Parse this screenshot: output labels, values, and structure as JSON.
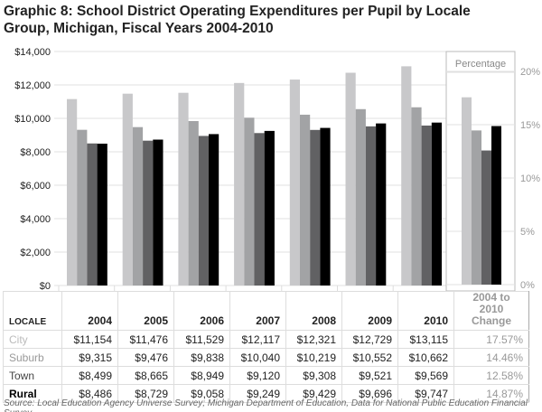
{
  "title": "Graphic 8: School District Operating Expenditures per Pupil by Locale Group, Michigan, Fiscal Years 2004-2010",
  "source": "Source: Local Education Agency Universe Survey; Michigan Department of Education, Data for National Public Education Financial Survey",
  "chart_data": [
    {
      "type": "bar",
      "categories": [
        "2004",
        "2005",
        "2006",
        "2007",
        "2008",
        "2009",
        "2010"
      ],
      "ylim": [
        0,
        14000
      ],
      "yticks": [
        "$0",
        "$2,000",
        "$4,000",
        "$6,000",
        "$8,000",
        "$10,000",
        "$12,000",
        "$14,000"
      ],
      "grid": true,
      "series": [
        {
          "name": "City",
          "color": "#c8c8ca",
          "values": [
            11154,
            11476,
            11529,
            12117,
            12321,
            12729,
            13115
          ]
        },
        {
          "name": "Suburb",
          "color": "#a2a3a5",
          "values": [
            9315,
            9476,
            9838,
            10040,
            10219,
            10552,
            10662
          ]
        },
        {
          "name": "Town",
          "color": "#616163",
          "values": [
            8499,
            8665,
            8949,
            9120,
            9308,
            9521,
            9569
          ]
        },
        {
          "name": "Rural",
          "color": "#000000",
          "values": [
            8486,
            8729,
            9058,
            9249,
            9429,
            9696,
            9747
          ]
        }
      ]
    },
    {
      "type": "bar",
      "title": "Percentage",
      "ylim": [
        0,
        20
      ],
      "yticks": [
        "0%",
        "5%",
        "10%",
        "15%",
        "20%"
      ],
      "categories": [
        "City",
        "Suburb",
        "Town",
        "Rural"
      ],
      "values": [
        17.57,
        14.46,
        12.58,
        14.87
      ]
    }
  ],
  "table": {
    "locale_header": "LOCALE",
    "change_header_1": "2004 to 2010",
    "change_header_2": "Change",
    "rows": [
      {
        "label": "City",
        "values": [
          "$11,154",
          "$11,476",
          "$11,529",
          "$12,117",
          "$12,321",
          "$12,729",
          "$13,115"
        ],
        "change": "17.57%"
      },
      {
        "label": "Suburb",
        "values": [
          "$9,315",
          "$9,476",
          "$9,838",
          "$10,040",
          "$10,219",
          "$10,552",
          "$10,662"
        ],
        "change": "14.46%"
      },
      {
        "label": "Town",
        "values": [
          "$8,499",
          "$8,665",
          "$8,949",
          "$9,120",
          "$9,308",
          "$9,521",
          "$9,569"
        ],
        "change": "12.58%"
      },
      {
        "label": "Rural",
        "values": [
          "$8,486",
          "$8,729",
          "$9,058",
          "$9,249",
          "$9,429",
          "$9,696",
          "$9,747"
        ],
        "change": "14.87%"
      }
    ]
  }
}
